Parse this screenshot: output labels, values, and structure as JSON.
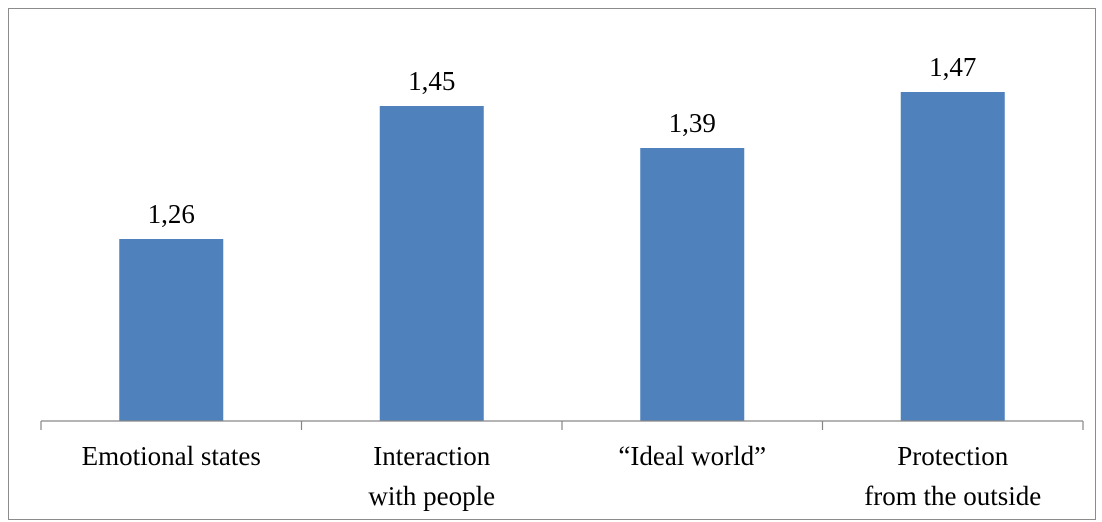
{
  "chart_data": {
    "type": "bar",
    "categories": [
      [
        "Emotional states"
      ],
      [
        "Interaction",
        "with people"
      ],
      [
        "“Ideal world”"
      ],
      [
        "Protection",
        "from the outside"
      ]
    ],
    "values": [
      1.26,
      1.45,
      1.39,
      1.47
    ],
    "value_labels": [
      "1,26",
      "1,45",
      "1,39",
      "1,47"
    ],
    "title": "",
    "xlabel": "",
    "ylabel": "",
    "ylim": [
      1.0,
      1.5
    ],
    "grid": false,
    "legend": "none",
    "bar_color": "#4f81bd",
    "axis_color": "#868686"
  }
}
